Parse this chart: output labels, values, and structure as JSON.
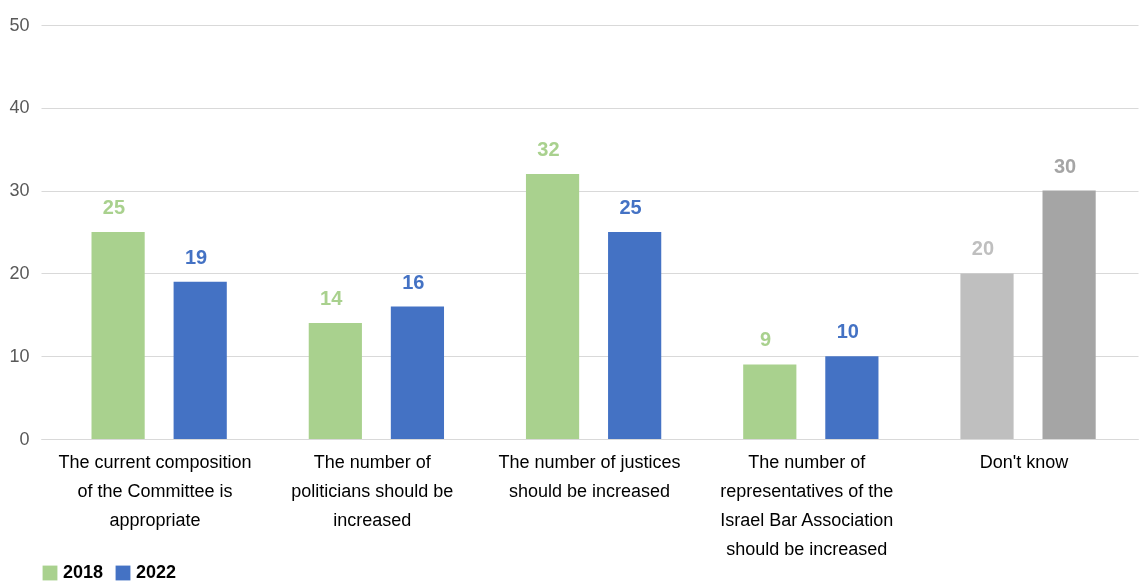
{
  "chart_data": {
    "type": "bar",
    "categories": [
      "The current composition of the Committee is appropriate",
      "The number of politicians should be increased",
      "The number of justices should be increased",
      "The number of representatives of the Israel Bar Association should be increased",
      "Don't know"
    ],
    "series": [
      {
        "name": "2018",
        "color": "#a9d18e",
        "colors": [
          "#a9d18e",
          "#a9d18e",
          "#a9d18e",
          "#a9d18e",
          "#bfbfbf"
        ],
        "values": [
          25,
          14,
          32,
          9,
          20
        ]
      },
      {
        "name": "2022",
        "color": "#4472c4",
        "colors": [
          "#4472c4",
          "#4472c4",
          "#4472c4",
          "#4472c4",
          "#a5a5a5"
        ],
        "values": [
          19,
          16,
          25,
          10,
          30
        ]
      }
    ],
    "ylim": [
      0,
      50
    ],
    "yticks": [
      0,
      10,
      20,
      30,
      40,
      50
    ],
    "grid": "y",
    "legend": "bottom",
    "data_labels": true
  }
}
